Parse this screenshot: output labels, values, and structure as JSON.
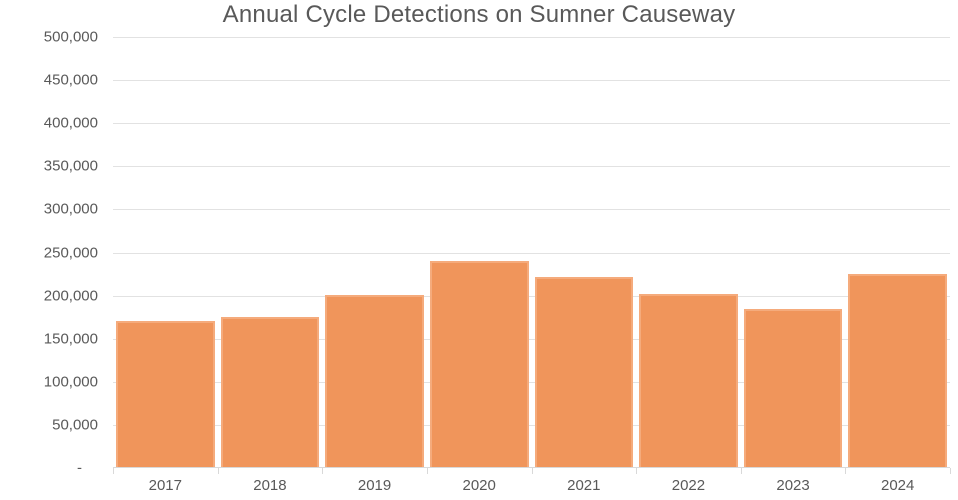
{
  "chart_data": {
    "type": "bar",
    "title": "Annual Cycle Detections on Sumner Causeway",
    "categories": [
      "2017",
      "2018",
      "2019",
      "2020",
      "2021",
      "2022",
      "2023",
      "2024"
    ],
    "values": [
      170000,
      175000,
      201000,
      240000,
      222000,
      202000,
      184000,
      225000
    ],
    "xlabel": "",
    "ylabel": "",
    "ylim": [
      0,
      500000
    ],
    "y_tick_step": 50000,
    "y_tick_labels": [
      "500,000",
      "450,000",
      "400,000",
      "350,000",
      "300,000",
      "250,000",
      "200,000",
      "150,000",
      "100,000",
      "50,000",
      "-"
    ],
    "grid": true,
    "legend": false,
    "colors": {
      "bar_fill": "#f0955b",
      "bar_border": "#f5ab7c",
      "gridline": "#e2e2e2",
      "axis_line": "#d9d9d9",
      "text": "#595959",
      "background": "#ffffff"
    }
  }
}
